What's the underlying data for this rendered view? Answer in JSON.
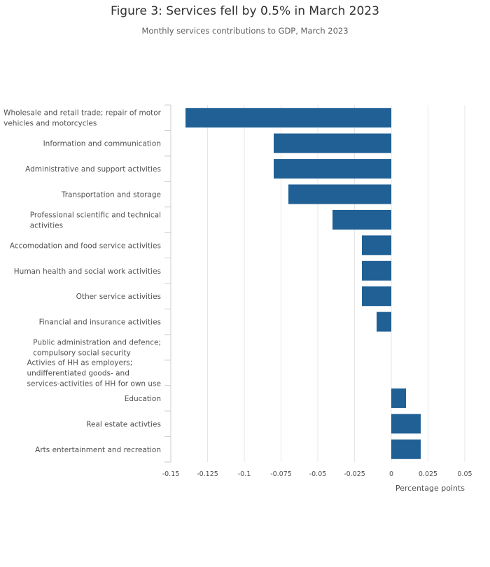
{
  "header": {
    "title": "Figure 3: Services fell by 0.5% in March 2023",
    "subtitle": "Monthly services contributions to GDP, March 2023"
  },
  "colors": {
    "bar": "#206095",
    "grid": "#e6e6e6",
    "axis": "#cccccc"
  },
  "chart_data": {
    "type": "bar",
    "orientation": "horizontal",
    "title": "Figure 3: Services fell by 0.5% in March 2023",
    "subtitle": "Monthly services contributions to GDP, March 2023",
    "xlabel": "Percentage points",
    "ylabel": "",
    "xlim": [
      -0.15,
      0.05
    ],
    "grid": true,
    "x_ticks": [
      {
        "value": -0.15,
        "label": "-0.15"
      },
      {
        "value": -0.125,
        "label": "-0.125"
      },
      {
        "value": -0.1,
        "label": "-0.1"
      },
      {
        "value": -0.075,
        "label": "-0.075"
      },
      {
        "value": -0.05,
        "label": "-0.05"
      },
      {
        "value": -0.025,
        "label": "-0.025"
      },
      {
        "value": 0,
        "label": "0"
      },
      {
        "value": 0.025,
        "label": "0.025"
      },
      {
        "value": 0.05,
        "label": "0.05"
      }
    ],
    "categories": [
      [
        "Wholesale and retail trade; repair of motor",
        "vehicles and motorcycles"
      ],
      [
        "Information and communication"
      ],
      [
        "Administrative and support activities"
      ],
      [
        "Transportation and storage"
      ],
      [
        "Professional scientific and technical",
        "activities"
      ],
      [
        "Accomodation and food service activities"
      ],
      [
        "Human health and social work activities"
      ],
      [
        "Other service activities"
      ],
      [
        "Financial and insurance activities"
      ],
      [
        "Public administration and defence;",
        "compulsory social security"
      ],
      [
        "Activies of HH as employers;",
        "undifferentiated goods- and",
        "services-activities of HH for own use"
      ],
      [
        "Education"
      ],
      [
        "Real estate activties"
      ],
      [
        "Arts entertainment and recreation"
      ]
    ],
    "values": [
      -0.14,
      -0.08,
      -0.08,
      -0.07,
      -0.04,
      -0.02,
      -0.02,
      -0.02,
      -0.01,
      0,
      0,
      0.01,
      0.02,
      0.02
    ]
  }
}
